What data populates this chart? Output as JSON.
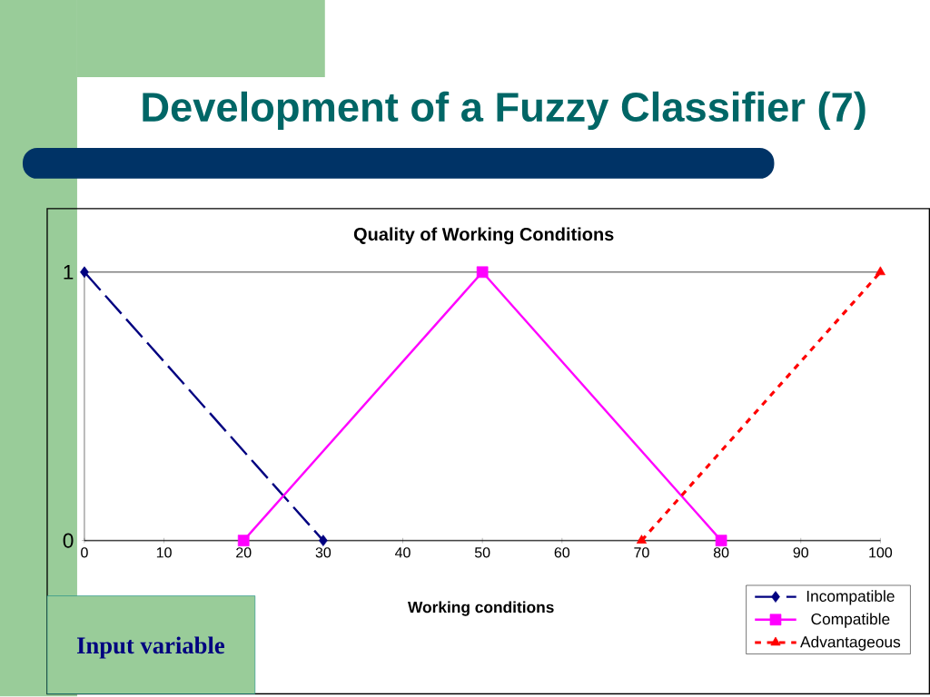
{
  "chart_data": {
    "type": "line",
    "title": "Development of a Fuzzy Classifier (7)",
    "subtitle": "Quality of Working Conditions",
    "xlabel": "Working conditions",
    "annotations": [
      "Input variable"
    ],
    "xlim": [
      0,
      100
    ],
    "xticks": [
      0,
      10,
      20,
      30,
      40,
      50,
      60,
      70,
      80,
      90,
      100
    ],
    "ylim": [
      0,
      1
    ],
    "yticks": [
      0,
      1
    ],
    "grid": "y",
    "legend": "bottom right",
    "series": [
      {
        "name": "Incompatible",
        "color": "#000080",
        "x": [
          0,
          30
        ],
        "values": [
          1,
          0
        ],
        "marker": "diamond",
        "line_style": "dashed"
      },
      {
        "name": "Compatible",
        "color": "#ff00ff",
        "x": [
          20,
          50,
          80
        ],
        "values": [
          0,
          1,
          0
        ],
        "marker": "square",
        "line_style": "solid"
      },
      {
        "name": "Advantageous",
        "color": "#ff0000",
        "x": [
          70,
          100
        ],
        "values": [
          0,
          1
        ],
        "marker": "triangle",
        "line_style": "dotted"
      }
    ]
  }
}
